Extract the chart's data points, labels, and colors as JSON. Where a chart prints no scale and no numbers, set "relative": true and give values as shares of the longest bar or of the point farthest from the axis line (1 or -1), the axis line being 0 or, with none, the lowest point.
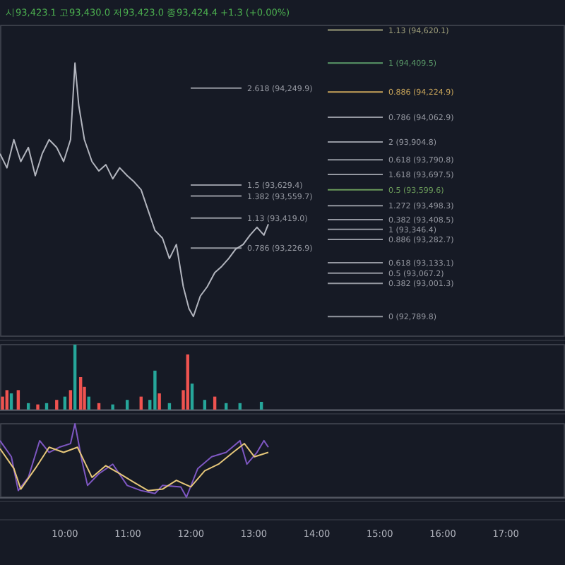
{
  "chart_data": [
    {
      "type": "line",
      "title": "시93,423.1 고93,430.0 저93,423.0 종93,424.4 +1.3 (+0.00%)",
      "tick_labels": false,
      "xlim": [
        8.97,
        17.94
      ],
      "ylim": [
        92664,
        94650
      ],
      "series": [
        {
          "color": "#b2b5be",
          "x": [
            8.97,
            9.08,
            9.19,
            9.3,
            9.42,
            9.53,
            9.64,
            9.75,
            9.87,
            9.98,
            10.09,
            10.16,
            10.22,
            10.31,
            10.43,
            10.54,
            10.65,
            10.76,
            10.87,
            10.99,
            11.1,
            11.21,
            11.32,
            11.43,
            11.55,
            11.66,
            11.77,
            11.88,
            11.97,
            12.04,
            12.15,
            12.26,
            12.38,
            12.49,
            12.6,
            12.71,
            12.83,
            12.94,
            13.05,
            13.16,
            13.23
          ],
          "values": [
            93830,
            93740,
            93920,
            93780,
            93870,
            93690,
            93830,
            93920,
            93870,
            93780,
            93920,
            94409.5,
            94140,
            93920,
            93780,
            93720,
            93760,
            93670,
            93740,
            93690,
            93650,
            93600,
            93470,
            93340,
            93290,
            93160,
            93250,
            92980,
            92840,
            92789.8,
            92920,
            92980,
            93070,
            93110,
            93160,
            93220,
            93250,
            93310,
            93360,
            93310,
            93380
          ]
        }
      ],
      "ref_lines": [
        {
          "axis": "y",
          "value": 94620.1,
          "label": "1.13 (94,620.1)",
          "color": "#9e9e7a"
        },
        {
          "axis": "y",
          "value": 94409.5,
          "label": "1 (94,409.5)",
          "color": "#5b9b6a"
        },
        {
          "axis": "y",
          "value": 94224.9,
          "label": "0.886 (94,224.9)",
          "color": "#c9a55a"
        },
        {
          "axis": "y",
          "value": 94062.9,
          "label": "0.786 (94,062.9)",
          "color": "#9598a1"
        },
        {
          "axis": "y",
          "value": 93790.8,
          "label": "0.618 (93,790.8)",
          "color": "#9598a1"
        },
        {
          "axis": "y",
          "value": 93599.6,
          "label": "0.5 (93,599.6)",
          "color": "#6b9b5a"
        },
        {
          "axis": "y",
          "value": 93408.5,
          "label": "0.382 (93,408.5)",
          "color": "#9598a1"
        },
        {
          "axis": "y",
          "value": 92789.8,
          "label": "0 (92,789.8)",
          "color": "#9598a1"
        },
        {
          "axis": "y",
          "value": 94249.9,
          "label": "2.618 (94,249.9)",
          "color": "#9598a1"
        },
        {
          "axis": "y",
          "value": 93904.8,
          "label": "2 (93,904.8)",
          "color": "#9598a1"
        },
        {
          "axis": "y",
          "value": 93697.5,
          "label": "1.618 (93,697.5)",
          "color": "#9598a1"
        },
        {
          "axis": "y",
          "value": 93629.4,
          "label": "1.5 (93,629.4)",
          "color": "#9598a1"
        },
        {
          "axis": "y",
          "value": 93559.7,
          "label": "1.382 (93,559.7)",
          "color": "#9598a1"
        },
        {
          "axis": "y",
          "value": 93498.3,
          "label": "1.272 (93,498.3)",
          "color": "#9598a1"
        },
        {
          "axis": "y",
          "value": 93419.0,
          "label": "1.13 (93,419.0)",
          "color": "#9598a1"
        },
        {
          "axis": "y",
          "value": 93346.4,
          "label": "1 (93,346.4)",
          "color": "#9598a1"
        },
        {
          "axis": "y",
          "value": 93282.7,
          "label": "0.886 (93,282.7)",
          "color": "#9598a1"
        },
        {
          "axis": "y",
          "value": 93226.9,
          "label": "0.786 (93,226.9)",
          "color": "#9598a1"
        },
        {
          "axis": "y",
          "value": 93133.1,
          "label": "0.618 (93,133.1)",
          "color": "#9598a1"
        },
        {
          "axis": "y",
          "value": 93067.2,
          "label": "0.5 (93,067.2)",
          "color": "#9598a1"
        },
        {
          "axis": "y",
          "value": 93001.3,
          "label": "0.382 (93,001.3)",
          "color": "#9598a1"
        }
      ]
    },
    {
      "type": "bar",
      "relative": true,
      "tick_labels": false,
      "xlim": [
        8.97,
        17.94
      ],
      "x": [
        9.01,
        9.08,
        9.15,
        9.26,
        9.42,
        9.57,
        9.71,
        9.87,
        10.0,
        10.09,
        10.16,
        10.25,
        10.31,
        10.38,
        10.54,
        10.76,
        10.99,
        11.21,
        11.35,
        11.43,
        11.5,
        11.66,
        11.88,
        11.95,
        12.02,
        12.22,
        12.38,
        12.56,
        12.78,
        13.12
      ],
      "values": [
        0.2,
        0.3,
        0.25,
        0.3,
        0.1,
        0.08,
        0.1,
        0.15,
        0.2,
        0.3,
        1.0,
        0.5,
        0.35,
        0.2,
        0.1,
        0.08,
        0.15,
        0.2,
        0.15,
        0.6,
        0.25,
        0.1,
        0.3,
        0.85,
        0.4,
        0.15,
        0.2,
        0.1,
        0.1,
        0.12
      ],
      "colors": [
        "#ef5350",
        "#ef5350",
        "#26a69a",
        "#ef5350",
        "#26a69a",
        "#ef5350",
        "#26a69a",
        "#ef5350",
        "#26a69a",
        "#ef5350",
        "#26a69a",
        "#ef5350",
        "#ef5350",
        "#26a69a",
        "#ef5350",
        "#26a69a",
        "#26a69a",
        "#ef5350",
        "#26a69a",
        "#26a69a",
        "#ef5350",
        "#26a69a",
        "#ef5350",
        "#ef5350",
        "#26a69a",
        "#26a69a",
        "#ef5350",
        "#26a69a",
        "#26a69a",
        "#26a69a"
      ]
    },
    {
      "type": "line",
      "relative": true,
      "tick_labels": "x",
      "xlim": [
        8.97,
        17.94
      ],
      "xticks": [
        {
          "value": 10,
          "label": "10:00"
        },
        {
          "value": 11,
          "label": "11:00"
        },
        {
          "value": 12,
          "label": "12:00"
        },
        {
          "value": 13,
          "label": "13:00"
        },
        {
          "value": 14,
          "label": "14:00"
        },
        {
          "value": 15,
          "label": "15:00"
        },
        {
          "value": 16,
          "label": "16:00"
        },
        {
          "value": 17,
          "label": "17:00"
        }
      ],
      "series": [
        {
          "color": "#7e57c2",
          "x": [
            8.97,
            9.15,
            9.26,
            9.42,
            9.6,
            9.75,
            9.91,
            10.09,
            10.16,
            10.27,
            10.36,
            10.54,
            10.76,
            10.99,
            11.21,
            11.43,
            11.55,
            11.84,
            11.93,
            12.11,
            12.33,
            12.56,
            12.78,
            12.89,
            13.05,
            13.16,
            13.23
          ],
          "values": [
            0.77,
            0.55,
            0.09,
            0.27,
            0.77,
            0.61,
            0.68,
            0.73,
            1,
            0.5,
            0.16,
            0.32,
            0.45,
            0.16,
            0.09,
            0.05,
            0.16,
            0.14,
            0,
            0.39,
            0.55,
            0.61,
            0.77,
            0.45,
            0.61,
            0.77,
            0.68
          ]
        },
        {
          "color": "#e6c77a",
          "x": [
            8.97,
            9.19,
            9.3,
            9.53,
            9.75,
            9.98,
            10.2,
            10.43,
            10.65,
            10.87,
            11.1,
            11.32,
            11.55,
            11.77,
            12.0,
            12.22,
            12.44,
            12.67,
            12.85,
            13.01,
            13.23
          ],
          "values": [
            0.66,
            0.39,
            0.11,
            0.39,
            0.68,
            0.61,
            0.68,
            0.27,
            0.43,
            0.32,
            0.2,
            0.09,
            0.11,
            0.23,
            0.14,
            0.36,
            0.45,
            0.61,
            0.73,
            0.55,
            0.61
          ]
        }
      ]
    }
  ]
}
